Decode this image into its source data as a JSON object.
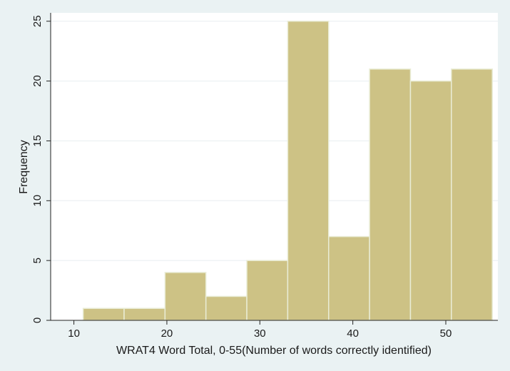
{
  "chart_data": {
    "type": "bar",
    "subtype": "histogram",
    "xlabel": "WRAT4 Word Total, 0-55(Number of words correctly identified)",
    "ylabel": "Frequency",
    "xlim": [
      7.5,
      55.6
    ],
    "ylim": [
      0,
      25.7
    ],
    "xticks": [
      10,
      20,
      30,
      40,
      50
    ],
    "yticks": [
      0,
      5,
      10,
      15,
      20,
      25
    ],
    "grid": true,
    "bin_edges": [
      11,
      15.4,
      19.8,
      24.2,
      28.6,
      33,
      37.4,
      41.8,
      46.2,
      50.6,
      55
    ],
    "values": [
      1,
      1,
      4,
      2,
      5,
      25,
      7,
      21,
      20,
      21
    ],
    "colors": {
      "background": "#eaf2f3",
      "plot_background": "#ffffff",
      "bar_fill": "#cdc285",
      "bar_stroke": "#e9ecd5",
      "grid": "#e8eef0",
      "axis": "#222222"
    }
  }
}
